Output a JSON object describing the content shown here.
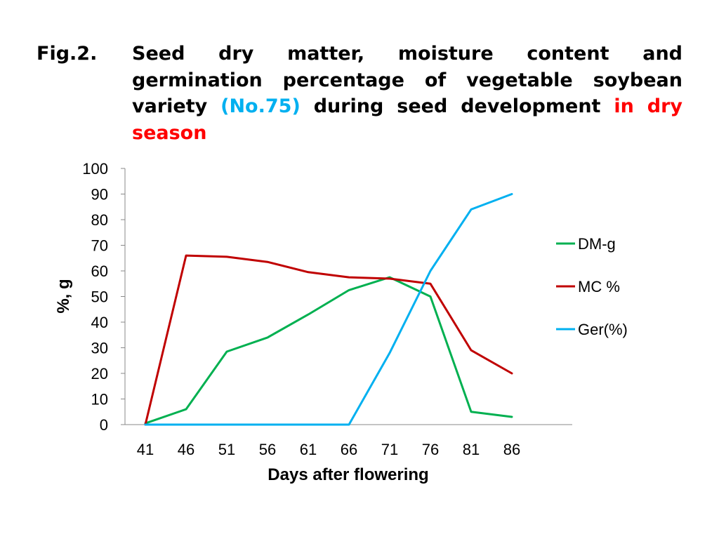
{
  "slide": {
    "fig_label": "Fig.2.",
    "title_part1": "Seed dry matter, moisture content and germination percentage of vegetable soybean variety",
    "title_highlight_variety": "(No.75)",
    "title_part2": "during seed development",
    "title_highlight_season": "in dry season",
    "accent_blue": "#00b0f0",
    "accent_red": "#ff0000"
  },
  "chart_data": {
    "type": "line",
    "title": "",
    "xlabel": "Days after flowering",
    "ylabel": "%, g",
    "categories": [
      "41",
      "46",
      "51",
      "56",
      "61",
      "66",
      "71",
      "76",
      "81",
      "86"
    ],
    "ylim": [
      0,
      100
    ],
    "yticks": [
      0,
      10,
      20,
      30,
      40,
      50,
      60,
      70,
      80,
      90,
      100
    ],
    "grid": false,
    "legend_position": "right",
    "series": [
      {
        "name": "DM-g",
        "color": "#00b050",
        "values": [
          0.5,
          6,
          28.5,
          34,
          43,
          52.5,
          57.5,
          50,
          5,
          3
        ]
      },
      {
        "name": "MC %",
        "color": "#c00000",
        "values": [
          0,
          66,
          65.5,
          63.5,
          59.5,
          57.5,
          57,
          55,
          29,
          20
        ]
      },
      {
        "name": "Ger(%)",
        "color": "#00b0f0",
        "values": [
          0,
          0,
          0,
          0,
          0,
          0,
          28,
          60,
          84,
          90
        ]
      }
    ]
  }
}
